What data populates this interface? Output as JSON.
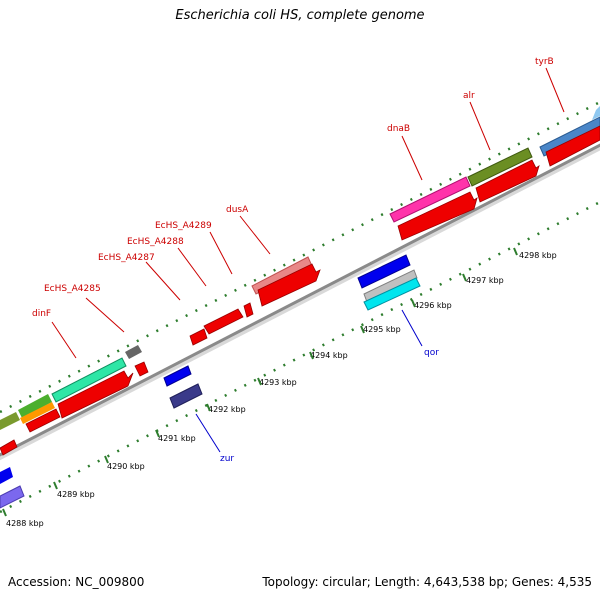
{
  "title": "Escherichia coli HS, complete genome",
  "footer": {
    "accession": "Accession: NC_009800",
    "stats": "Topology: circular; Length: 4,643,538 bp; Genes: 4,535"
  },
  "colors": {
    "backbone": "#8a8a8a",
    "tick_dots": "#2e7d2e",
    "upper_label": "#cc0000",
    "lower_label": "#0000cc",
    "cds_red": "#ee0000"
  },
  "ticks": [
    "4288 kbp",
    "4289 kbp",
    "4290 kbp",
    "4291 kbp",
    "4292 kbp",
    "4293 kbp",
    "4294 kbp",
    "4295 kbp",
    "4296 kbp",
    "4297 kbp",
    "4298 kbp"
  ],
  "upper_labels": [
    "dinF",
    "EcHS_A4285",
    "EcHS_A4287",
    "EcHS_A4288",
    "EcHS_A4289",
    "dusA",
    "dnaB",
    "alr",
    "tyrB"
  ],
  "lower_labels": [
    "zur",
    "qor"
  ]
}
